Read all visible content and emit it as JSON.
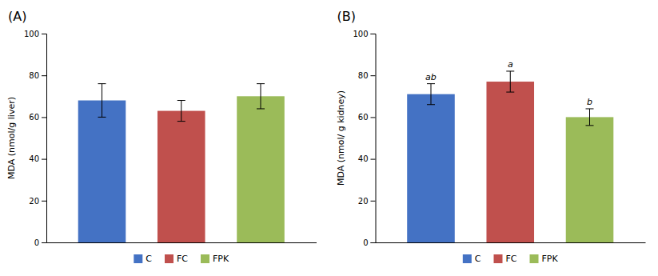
{
  "chart_data": [
    {
      "type": "bar",
      "title": "(A)",
      "categories": [
        "C",
        "FC",
        "FPK"
      ],
      "values": [
        68,
        63,
        70
      ],
      "errors": [
        8,
        5,
        6
      ],
      "colors": [
        "#4472C4",
        "#C0504D",
        "#9BBB59"
      ],
      "ylabel": "MDA (nmol/g liver)",
      "ylim": [
        0,
        100
      ],
      "yticks": [
        0,
        20,
        40,
        60,
        80,
        100
      ],
      "grid": false,
      "legend": "bottom",
      "tick_labels": "y"
    },
    {
      "type": "bar",
      "title": "(B)",
      "categories": [
        "C",
        "FC",
        "FPK"
      ],
      "values": [
        71,
        77,
        60
      ],
      "errors": [
        5,
        5,
        4
      ],
      "colors": [
        "#4472C4",
        "#C0504D",
        "#9BBB59"
      ],
      "ylabel": "MDA (nmol/ g kidney)",
      "ylim": [
        0,
        100
      ],
      "yticks": [
        0,
        20,
        40,
        60,
        80,
        100
      ],
      "annotations": [
        "ab",
        "a",
        "b"
      ],
      "grid": false,
      "legend": "bottom",
      "tick_labels": "y"
    }
  ]
}
